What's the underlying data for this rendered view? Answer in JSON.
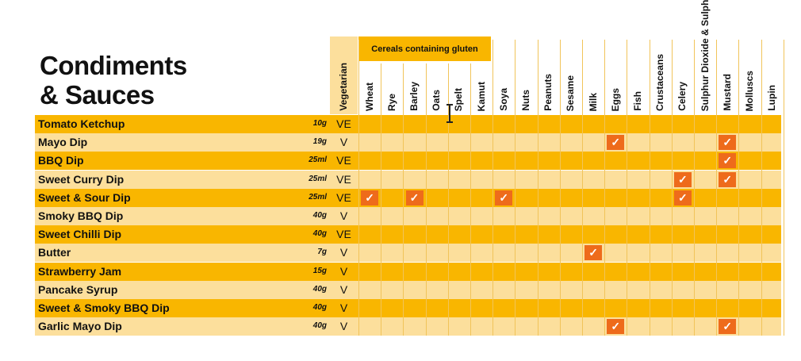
{
  "title_line1": "Condiments",
  "title_line2": "& Sauces",
  "gluten_group_label": "Cereals containing gluten",
  "colors": {
    "dark_row": "#f9b600",
    "light_row": "#fcdf9c",
    "check": "#ee6b1b"
  },
  "columns": [
    {
      "label": "Vegetarian"
    },
    {
      "label": "Wheat"
    },
    {
      "label": "Rye"
    },
    {
      "label": "Barley"
    },
    {
      "label": "Oats"
    },
    {
      "label": "Spelt"
    },
    {
      "label": "Kamut"
    },
    {
      "label": "Soya"
    },
    {
      "label": "Nuts"
    },
    {
      "label": "Peanuts"
    },
    {
      "label": "Sesame"
    },
    {
      "label": "Milk"
    },
    {
      "label": "Eggs"
    },
    {
      "label": "Fish"
    },
    {
      "label": "Crustaceans"
    },
    {
      "label": "Celery"
    },
    {
      "label": "Sulphur Dioxide & Sulphites"
    },
    {
      "label": "Mustard"
    },
    {
      "label": "Molluscs"
    },
    {
      "label": "Lupin"
    }
  ],
  "rows": [
    {
      "name": "Tomato Ketchup",
      "qty": "10g",
      "veg": "VE",
      "allergens": []
    },
    {
      "name": "Mayo Dip",
      "qty": "19g",
      "veg": "V",
      "allergens": [
        "Eggs",
        "Mustard"
      ]
    },
    {
      "name": "BBQ Dip",
      "qty": "25ml",
      "veg": "VE",
      "allergens": [
        "Mustard"
      ]
    },
    {
      "name": "Sweet Curry Dip",
      "qty": "25ml",
      "veg": "VE",
      "allergens": [
        "Celery",
        "Mustard"
      ]
    },
    {
      "name": "Sweet & Sour Dip",
      "qty": "25ml",
      "veg": "VE",
      "allergens": [
        "Wheat",
        "Barley",
        "Soya",
        "Celery"
      ]
    },
    {
      "name": "Smoky BBQ Dip",
      "qty": "40g",
      "veg": "V",
      "allergens": []
    },
    {
      "name": "Sweet Chilli Dip",
      "qty": "40g",
      "veg": "VE",
      "allergens": []
    },
    {
      "name": "Butter",
      "qty": "7g",
      "veg": "V",
      "allergens": [
        "Milk"
      ]
    },
    {
      "name": "Strawberry Jam",
      "qty": "15g",
      "veg": "V",
      "allergens": []
    },
    {
      "name": "Pancake Syrup",
      "qty": "40g",
      "veg": "V",
      "allergens": []
    },
    {
      "name": "Sweet & Smoky BBQ Dip",
      "qty": "40g",
      "veg": "V",
      "allergens": []
    },
    {
      "name": "Garlic Mayo Dip",
      "qty": "40g",
      "veg": "V",
      "allergens": [
        "Eggs",
        "Mustard"
      ]
    }
  ],
  "check_glyph": "✓"
}
